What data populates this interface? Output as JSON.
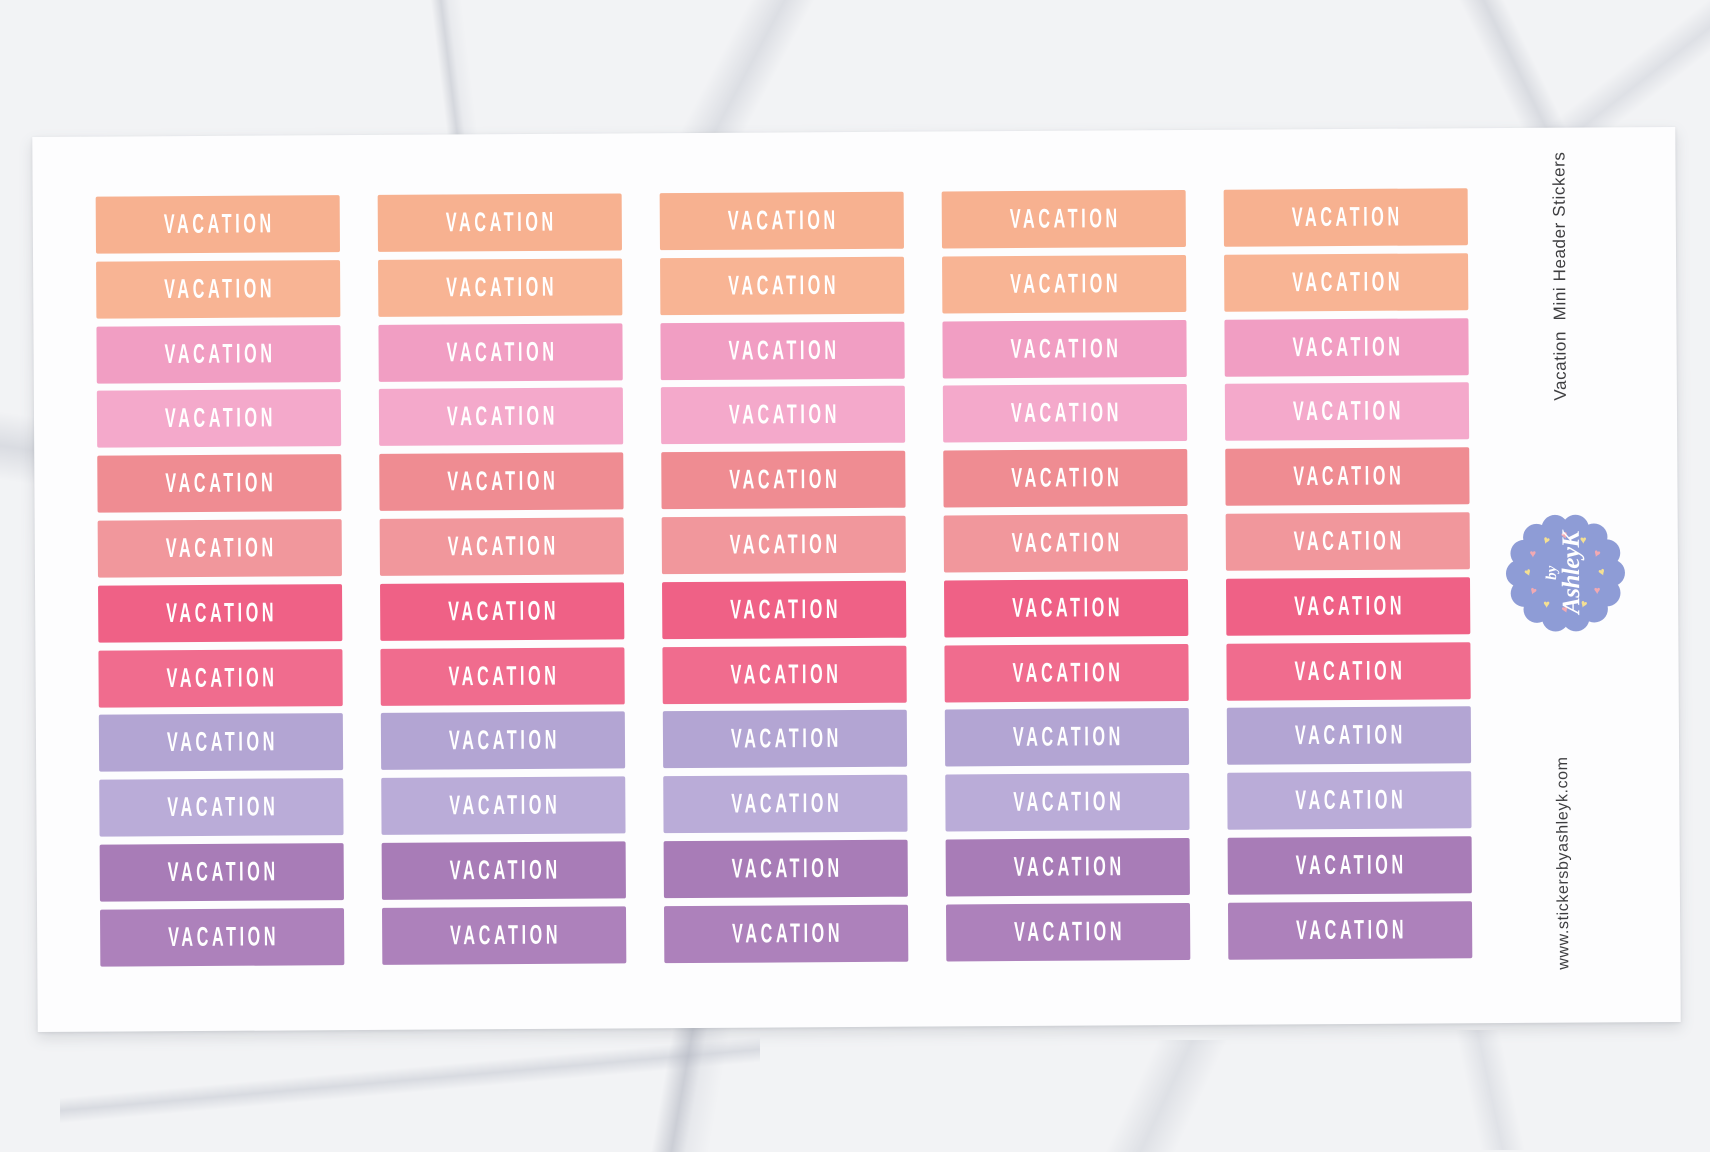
{
  "product": {
    "sticker_label": "VACATION",
    "columns": 5,
    "rows": [
      {
        "name": "peach-1",
        "color": "#F7B190"
      },
      {
        "name": "peach-2",
        "color": "#F8B494"
      },
      {
        "name": "pink-1",
        "color": "#F19EC3"
      },
      {
        "name": "pink-2",
        "color": "#F4A9CB"
      },
      {
        "name": "coral-1",
        "color": "#EF8C92"
      },
      {
        "name": "coral-2",
        "color": "#F1979C"
      },
      {
        "name": "hotpink-1",
        "color": "#EF6186"
      },
      {
        "name": "hotpink-2",
        "color": "#F06C8E"
      },
      {
        "name": "lavender-1",
        "color": "#B3A5D3"
      },
      {
        "name": "lavender-2",
        "color": "#BAACD8"
      },
      {
        "name": "purple-1",
        "color": "#A87CB7"
      },
      {
        "name": "purple-2",
        "color": "#AD81BB"
      }
    ],
    "sheet_color": "#FDFDFE",
    "label_text_color": "#FFFFFF"
  },
  "side": {
    "title": "Vacation  Mini Header Stickers",
    "website": "www.stickersbyashleyk.com",
    "text_color": "#3E3E40"
  },
  "badge": {
    "by": "by",
    "name": "AshleyK",
    "color": "#8E9CD6",
    "text_color": "#FFFFFF",
    "heart_colors": [
      "#F2A9B2",
      "#F5E092"
    ],
    "scallops": 14,
    "hearts": 12
  }
}
